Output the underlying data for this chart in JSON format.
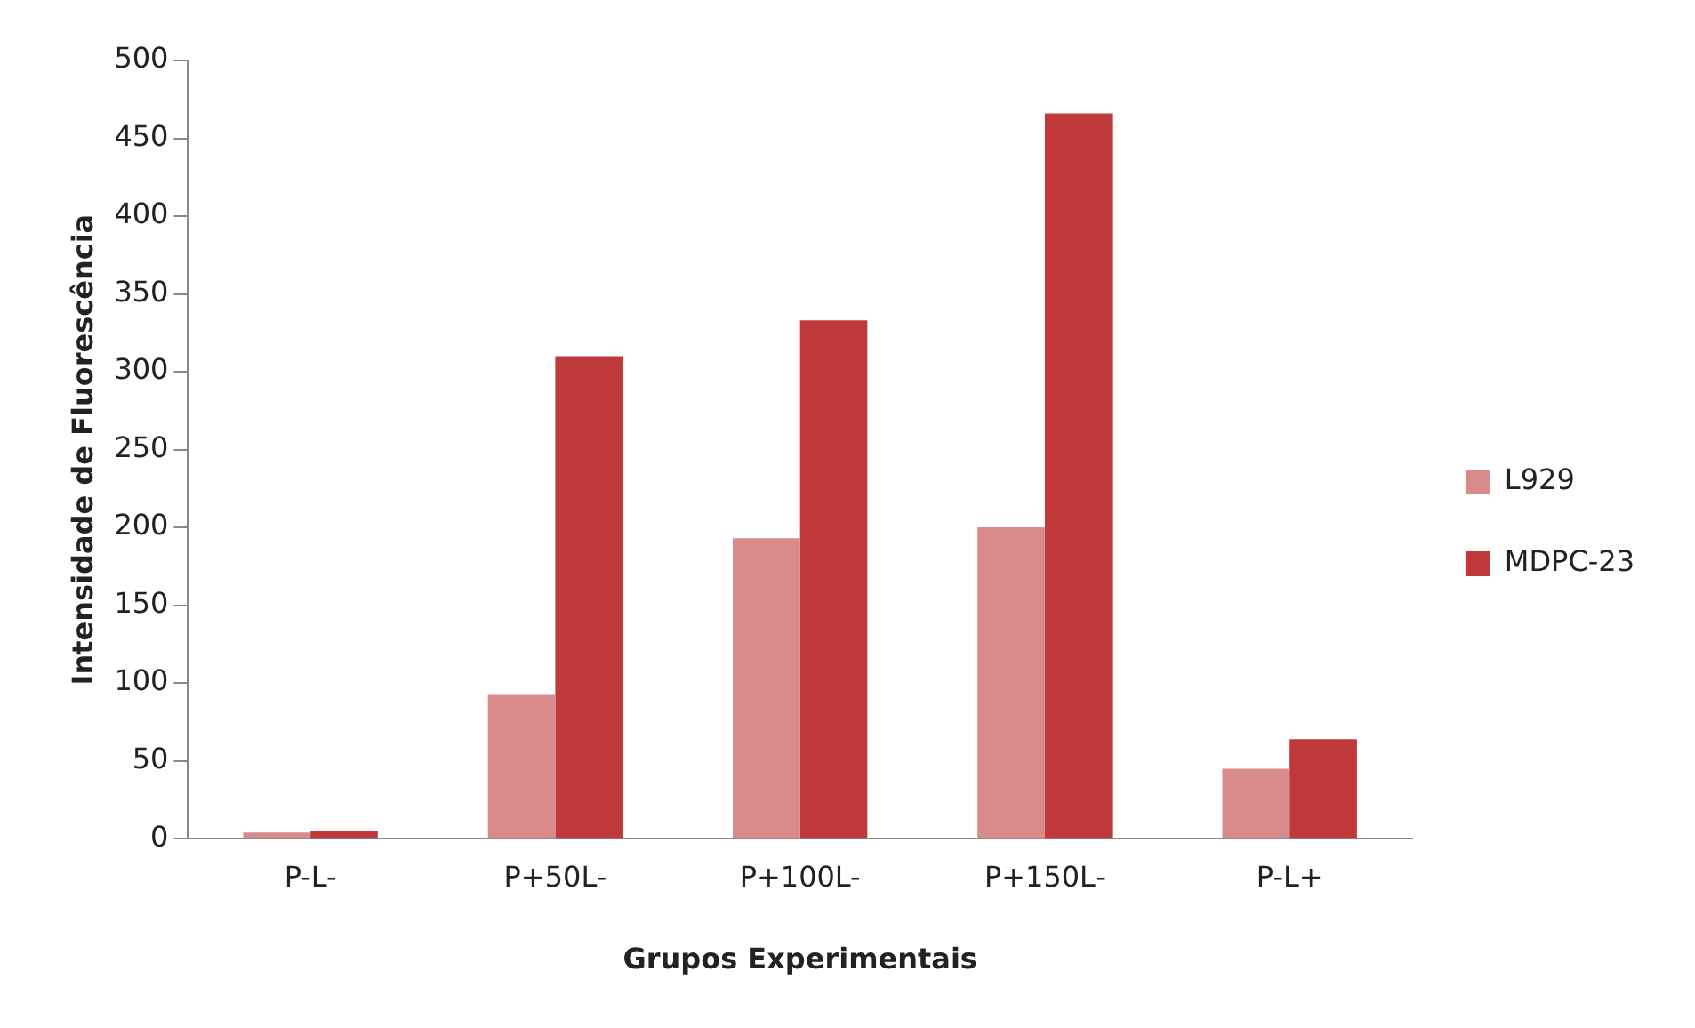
{
  "chart_data": {
    "type": "bar",
    "xlabel": "Grupos Experimentais",
    "ylabel": "Intensidade de Fluorescência",
    "categories": [
      "P-L-",
      "P+50L-",
      "P+100L-",
      "P+150L-",
      "P-L+"
    ],
    "series": [
      {
        "name": "L929",
        "color": "#d98a8a",
        "values": [
          4,
          93,
          193,
          200,
          45
        ]
      },
      {
        "name": "MDPC-23",
        "color": "#c0393b",
        "values": [
          5,
          310,
          333,
          466,
          64
        ]
      }
    ],
    "ylim": [
      0,
      500
    ],
    "yticks": [
      0,
      50,
      100,
      150,
      200,
      250,
      300,
      350,
      400,
      450,
      500
    ],
    "grid": false,
    "legend": "right"
  }
}
